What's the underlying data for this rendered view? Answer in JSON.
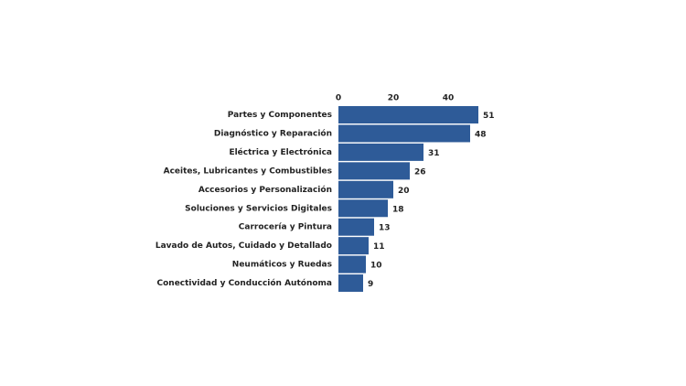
{
  "chart_data": {
    "type": "barh",
    "categories": [
      "Partes y Componentes",
      "Diagnóstico y Reparación",
      "Eléctrica y Electrónica",
      "Aceites, Lubricantes y Combustibles",
      "Accesorios y Personalización",
      "Soluciones y Servicios Digitales",
      "Carrocería y Pintura",
      "Lavado de Autos, Cuidado y Detallado",
      "Neumáticos y Ruedas",
      "Conectividad y Conducción Autónoma"
    ],
    "values": [
      51,
      48,
      31,
      26,
      20,
      18,
      13,
      11,
      10,
      9
    ],
    "color": "#2e5b98",
    "xlim": [
      0,
      51
    ],
    "xticks": [
      0,
      20,
      40
    ],
    "grid": false
  }
}
